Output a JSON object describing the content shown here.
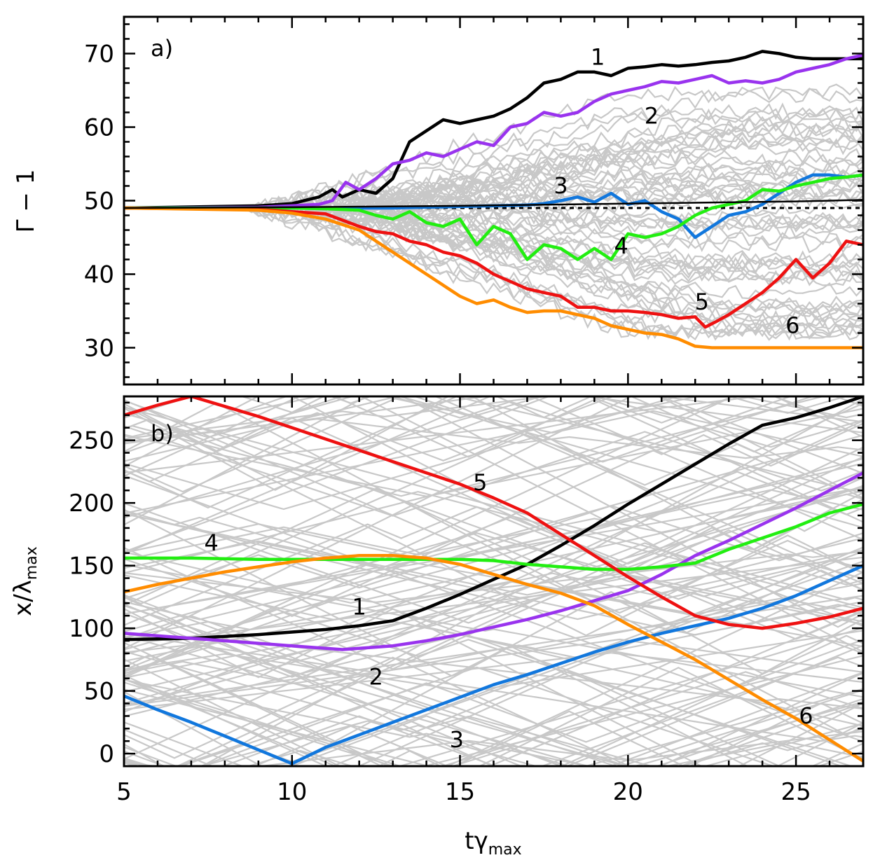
{
  "chart_data": [
    {
      "panel": "a",
      "type": "line",
      "panel_label": "a)",
      "ylabel": "Γ − 1",
      "xlabel": "",
      "xlim": [
        5,
        27
      ],
      "ylim": [
        25,
        75
      ],
      "yticks": [
        30,
        40,
        50,
        60,
        70
      ],
      "reference_level": 49,
      "curve_labels": [
        {
          "text": "1",
          "x": 19.1,
          "y": 68.5
        },
        {
          "text": "2",
          "x": 20.7,
          "y": 60.5
        },
        {
          "text": "3",
          "x": 18.0,
          "y": 51.0
        },
        {
          "text": "4",
          "x": 19.8,
          "y": 42.8
        },
        {
          "text": "5",
          "x": 22.2,
          "y": 35.2
        },
        {
          "text": "6",
          "x": 24.9,
          "y": 32.0
        }
      ],
      "series": [
        {
          "name": "1",
          "color": "#000000",
          "x": [
            5,
            9,
            10,
            10.8,
            11.2,
            11.5,
            12,
            12.5,
            13,
            13.5,
            14,
            14.5,
            15,
            15.5,
            16,
            16.5,
            17,
            17.5,
            18,
            18.5,
            19,
            19.5,
            20,
            20.5,
            21,
            21.5,
            22,
            22.5,
            23,
            23.5,
            24,
            24.5,
            25,
            25.5,
            26,
            26.5,
            27
          ],
          "y": [
            49,
            49.3,
            49.6,
            50.5,
            51.5,
            50.5,
            51.5,
            51,
            53,
            58,
            59.5,
            61,
            60.5,
            61,
            61.5,
            62.5,
            64,
            66,
            66.5,
            67.5,
            67.5,
            67,
            68,
            68.2,
            68.5,
            68.3,
            68.5,
            68.8,
            69,
            69.5,
            70.3,
            70,
            69.5,
            69.3,
            69.3,
            69.3,
            69.3
          ]
        },
        {
          "name": "2",
          "color": "#9933ee",
          "x": [
            5,
            9,
            10,
            10.8,
            11.2,
            11.6,
            12,
            12.5,
            13,
            13.5,
            14,
            14.5,
            15,
            15.5,
            16,
            16.5,
            17,
            17.5,
            18,
            18.5,
            19,
            19.5,
            20,
            20.5,
            21,
            21.5,
            22,
            22.5,
            23,
            23.5,
            24,
            24.5,
            25,
            25.5,
            26,
            26.5,
            27
          ],
          "y": [
            49,
            49.1,
            49.3,
            49.5,
            50,
            52.5,
            51.5,
            53,
            55,
            55.5,
            56.5,
            56,
            57,
            58,
            57.5,
            60,
            60.5,
            62,
            61.5,
            62,
            63.5,
            64.5,
            65,
            65.5,
            66.2,
            66,
            66.5,
            67,
            66,
            66.3,
            66,
            66.5,
            67.5,
            68,
            68.5,
            69.3,
            69.8
          ]
        },
        {
          "name": "3",
          "color": "#1177dd",
          "x": [
            5,
            9,
            10,
            11,
            12,
            13,
            14,
            15,
            16,
            17,
            17.5,
            18,
            18.5,
            19,
            19.5,
            20,
            20.5,
            21,
            21.5,
            22,
            22.5,
            23,
            23.5,
            24,
            24.5,
            25,
            25.5,
            26,
            26.5,
            27
          ],
          "y": [
            49,
            49,
            49,
            49,
            49,
            49,
            49.1,
            49.2,
            49.3,
            49.4,
            49.6,
            50,
            50.5,
            49.8,
            51,
            49.5,
            50,
            48.5,
            47.5,
            45,
            46.5,
            48,
            48.5,
            49.5,
            51,
            52.5,
            53.5,
            53.5,
            53.2,
            53.5
          ]
        },
        {
          "name": "4",
          "color": "#22ee11",
          "x": [
            5,
            9,
            10,
            11,
            12,
            12.5,
            13,
            13.5,
            14,
            14.5,
            15,
            15.5,
            16,
            16.5,
            17,
            17.5,
            18,
            18.5,
            19,
            19.5,
            20,
            20.5,
            21,
            21.5,
            22,
            22.5,
            23,
            23.5,
            24,
            24.5,
            25,
            25.5,
            26,
            26.5,
            27
          ],
          "y": [
            49,
            49,
            49,
            48.9,
            48.7,
            48,
            47.5,
            48.5,
            47,
            46.5,
            47.5,
            44,
            46.5,
            45.5,
            42,
            44,
            43.5,
            42,
            43.5,
            42,
            45.5,
            45,
            45.5,
            46.5,
            48,
            49,
            49.5,
            50,
            51.5,
            51.3,
            52,
            52.5,
            53,
            53.2,
            53.5
          ]
        },
        {
          "name": "5",
          "color": "#ee1111",
          "x": [
            5,
            9,
            10,
            11,
            12,
            12.5,
            13,
            13.5,
            14,
            14.5,
            15,
            15.5,
            16,
            16.5,
            17,
            17.5,
            18,
            18.5,
            19,
            19.5,
            20,
            20.5,
            21,
            21.5,
            22,
            22.3,
            22.6,
            23,
            23.5,
            24,
            24.5,
            25,
            25.5,
            26,
            26.5,
            27
          ],
          "y": [
            49,
            48.8,
            48.5,
            48.2,
            46.5,
            45.8,
            45.5,
            44.5,
            44,
            43,
            42.5,
            41.5,
            40,
            39,
            38,
            37.5,
            37,
            35.5,
            35.5,
            35,
            35,
            34.8,
            34.5,
            34,
            34.2,
            32.8,
            33.5,
            34.5,
            36,
            37.5,
            39.5,
            42,
            39.5,
            41.5,
            44.5,
            44
          ]
        },
        {
          "name": "6",
          "color": "#ff8c00",
          "x": [
            5,
            9,
            10,
            11,
            12,
            12.5,
            13,
            13.5,
            14,
            14.5,
            15,
            15.5,
            16,
            16.5,
            17,
            17.5,
            18,
            18.5,
            19,
            19.5,
            20,
            20.5,
            21,
            21.5,
            22,
            22.5,
            23,
            24,
            25,
            26,
            27
          ],
          "y": [
            49,
            48.7,
            48.3,
            47.5,
            46,
            44.5,
            43,
            41.5,
            40,
            38.5,
            37,
            36,
            36.5,
            35.5,
            34.8,
            35,
            35,
            34.5,
            34,
            33,
            32.5,
            32,
            31.8,
            31.2,
            30.2,
            30,
            30,
            30,
            30,
            30,
            30
          ]
        },
        {
          "name": "mean",
          "color": "#000000",
          "width": "thin",
          "x": [
            5,
            10,
            15,
            20,
            25,
            27
          ],
          "y": [
            49,
            49.1,
            49.3,
            49.6,
            49.9,
            50.1
          ]
        }
      ]
    },
    {
      "panel": "b",
      "type": "line",
      "panel_label": "b)",
      "xlabel": "tγmax",
      "ylabel": "x/λmax",
      "xlim": [
        5,
        27
      ],
      "ylim": [
        -10,
        285
      ],
      "xticks": [
        5,
        10,
        15,
        20,
        25
      ],
      "yticks": [
        0,
        50,
        100,
        150,
        200,
        250
      ],
      "curve_labels": [
        {
          "text": "1",
          "x": 12.0,
          "y": 111
        },
        {
          "text": "2",
          "x": 12.5,
          "y": 55
        },
        {
          "text": "3",
          "x": 14.9,
          "y": 5
        },
        {
          "text": "4",
          "x": 7.6,
          "y": 162
        },
        {
          "text": "5",
          "x": 15.6,
          "y": 210
        },
        {
          "text": "6",
          "x": 25.3,
          "y": 24
        }
      ],
      "series": [
        {
          "name": "1",
          "color": "#000000",
          "x": [
            5,
            7,
            9,
            10,
            11,
            12,
            13,
            14,
            15,
            16,
            17,
            18,
            19,
            20,
            21,
            22,
            23,
            24,
            25,
            26,
            27
          ],
          "y": [
            91,
            92,
            95,
            97,
            99,
            102,
            106,
            116,
            127,
            139,
            151,
            166,
            182,
            199,
            215,
            231,
            247,
            262,
            268,
            276,
            285
          ]
        },
        {
          "name": "2",
          "color": "#9933ee",
          "x": [
            5,
            7,
            9,
            10,
            11,
            11.5,
            12,
            13,
            14,
            15,
            16,
            17,
            18,
            19,
            20,
            21,
            22,
            23,
            24,
            25,
            26,
            27
          ],
          "y": [
            96,
            92,
            88,
            86,
            84,
            83,
            84,
            86,
            90,
            95,
            101,
            107,
            114,
            122,
            130,
            143,
            158,
            170,
            183,
            196,
            210,
            224
          ]
        },
        {
          "name": "3",
          "color": "#1177dd",
          "x": [
            5,
            6,
            7,
            8,
            9,
            10,
            11,
            12,
            13,
            14,
            15,
            16,
            17,
            18,
            19,
            20,
            21,
            22,
            23,
            24,
            25,
            26,
            27
          ],
          "y": [
            46,
            35,
            25,
            14,
            3,
            -8,
            5,
            15,
            25,
            35,
            45,
            55,
            63,
            72,
            81,
            89,
            96,
            102,
            108,
            116,
            126,
            138,
            150
          ]
        },
        {
          "name": "4",
          "color": "#22ee11",
          "x": [
            5,
            7,
            9,
            11,
            13,
            15,
            16,
            17,
            18,
            19,
            20,
            21,
            22,
            23,
            24,
            25,
            26,
            27
          ],
          "y": [
            156,
            156,
            155,
            155,
            155,
            155,
            154,
            151,
            149,
            147,
            147,
            149,
            152,
            163,
            172,
            181,
            192,
            199
          ]
        },
        {
          "name": "5",
          "color": "#ee1111",
          "x": [
            5,
            6,
            7,
            8,
            9,
            10,
            11,
            12,
            13,
            14,
            15,
            16,
            17,
            18,
            19,
            20,
            21,
            22,
            23,
            24,
            25,
            26,
            27
          ],
          "y": [
            270,
            278,
            285,
            277,
            269,
            260,
            251,
            242,
            233,
            224,
            215,
            204,
            192,
            175,
            158,
            141,
            125,
            110,
            103,
            100,
            104,
            109,
            116
          ]
        },
        {
          "name": "6",
          "color": "#ff8c00",
          "x": [
            5,
            6,
            7,
            8,
            9,
            10,
            11,
            12,
            13,
            14,
            15,
            16,
            17,
            18,
            19,
            20,
            21,
            22,
            23,
            24,
            25,
            26,
            27
          ],
          "y": [
            129,
            135,
            140,
            145,
            149,
            153,
            156,
            158,
            158,
            156,
            151,
            143,
            135,
            128,
            118,
            103,
            89,
            75,
            59,
            43,
            28,
            11,
            -6
          ]
        }
      ]
    }
  ],
  "background_trajectories_color": "#c8c8c8"
}
